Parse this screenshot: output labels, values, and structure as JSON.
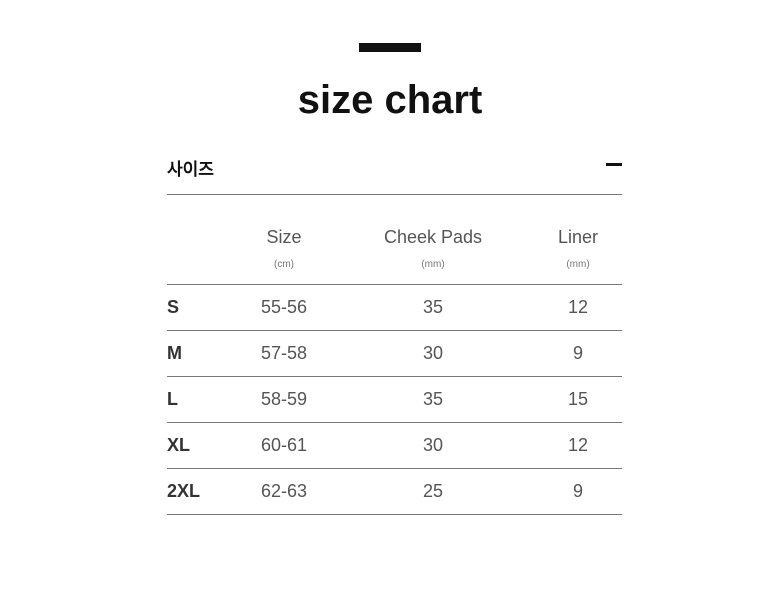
{
  "title": "size chart",
  "section": {
    "label": "사이즈",
    "toggle": "collapse-icon"
  },
  "table": {
    "headers": [
      {
        "label": "Size",
        "unit": "(cm)"
      },
      {
        "label": "Cheek Pads",
        "unit": "(mm)"
      },
      {
        "label": "Liner",
        "unit": "(mm)"
      }
    ],
    "rows": [
      {
        "label": "S",
        "values": [
          "55-56",
          "35",
          "12"
        ]
      },
      {
        "label": "M",
        "values": [
          "57-58",
          "30",
          "9"
        ]
      },
      {
        "label": "L",
        "values": [
          "58-59",
          "35",
          "15"
        ]
      },
      {
        "label": "XL",
        "values": [
          "60-61",
          "30",
          "12"
        ]
      },
      {
        "label": "2XL",
        "values": [
          "62-63",
          "25",
          "9"
        ]
      }
    ]
  }
}
